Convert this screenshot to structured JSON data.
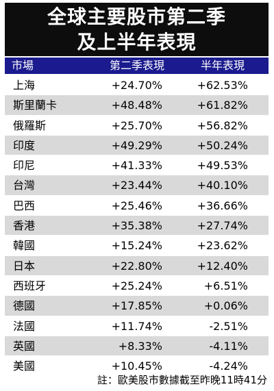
{
  "title": {
    "line1": "全球主要股市第二季",
    "line2": "及上半年表現"
  },
  "header": {
    "market": "市場",
    "q2": "第二季表現",
    "h1": "半年表現"
  },
  "rows": [
    {
      "market": "上海",
      "q2": "+24.70%",
      "h1": "+62.53%"
    },
    {
      "market": "斯里蘭卡",
      "q2": "+48.48%",
      "h1": "+61.82%"
    },
    {
      "market": "俄羅斯",
      "q2": "+25.70%",
      "h1": "+56.82%"
    },
    {
      "market": "印度",
      "q2": "+49.29%",
      "h1": "+50.24%"
    },
    {
      "market": "印尼",
      "q2": "+41.33%",
      "h1": "+49.53%"
    },
    {
      "market": "台灣",
      "q2": "+23.44%",
      "h1": "+40.10%"
    },
    {
      "market": "巴西",
      "q2": "+25.46%",
      "h1": "+36.66%"
    },
    {
      "market": "香港",
      "q2": "+35.38%",
      "h1": "+27.74%"
    },
    {
      "market": "韓國",
      "q2": "+15.24%",
      "h1": "+23.62%"
    },
    {
      "market": "日本",
      "q2": "+22.80%",
      "h1": "+12.40%"
    },
    {
      "market": "西班牙",
      "q2": "+25.24%",
      "h1": "+6.51%"
    },
    {
      "market": "德國",
      "q2": "+17.85%",
      "h1": "+0.06%"
    },
    {
      "market": "法國",
      "q2": "+11.74%",
      "h1": "-2.51%"
    },
    {
      "market": "英國",
      "q2": "+8.33%",
      "h1": "-4.11%"
    },
    {
      "market": "美國",
      "q2": "+10.45%",
      "h1": "-4.24%"
    }
  ],
  "note": "註：歐美股市數據截至昨晚11時41分",
  "colors": {
    "title_bg": "#0d0d0d",
    "header_bg": "#1b1b8f",
    "stripe": "#d9d9d9"
  }
}
